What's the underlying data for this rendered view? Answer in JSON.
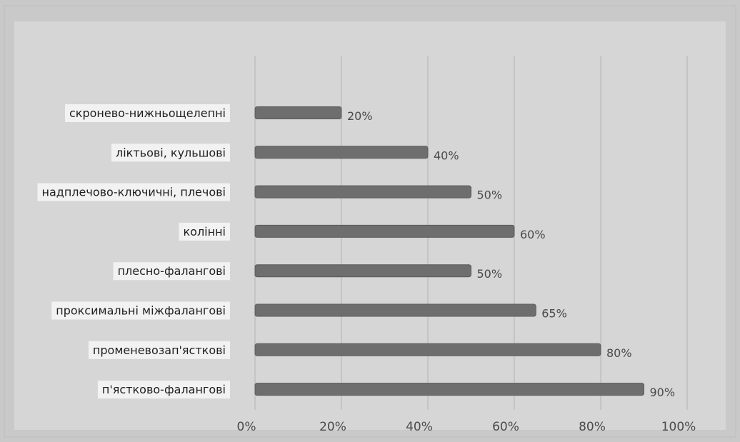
{
  "chart_data": {
    "type": "bar",
    "orientation": "horizontal",
    "categories": [
      "скронево-нижньощелепні",
      "ліктьові, кульшові",
      "надплечово-ключичні, плечові",
      "колінні",
      "плесно-фалангові",
      "проксимальні міжфалангові",
      "променевозап'ясткові",
      "п'ястково-фалангові"
    ],
    "values": [
      20,
      40,
      50,
      60,
      50,
      65,
      80,
      90
    ],
    "value_labels": [
      "20%",
      "40%",
      "50%",
      "60%",
      "50%",
      "65%",
      "80%",
      "90%"
    ],
    "x_ticks": [
      "0%",
      "20%",
      "40%",
      "60%",
      "80%",
      "100%"
    ],
    "xlim": [
      0,
      100
    ],
    "grid": "vertical",
    "colors": {
      "bar": "#6e6e6e",
      "background": "#c9c9c9",
      "plot_bg": "#d6d6d6",
      "grid": "#b3b3b3",
      "label_bg": "#f2f2f2",
      "text": "#1e1e1e",
      "value_text": "#4a4a4a"
    }
  }
}
